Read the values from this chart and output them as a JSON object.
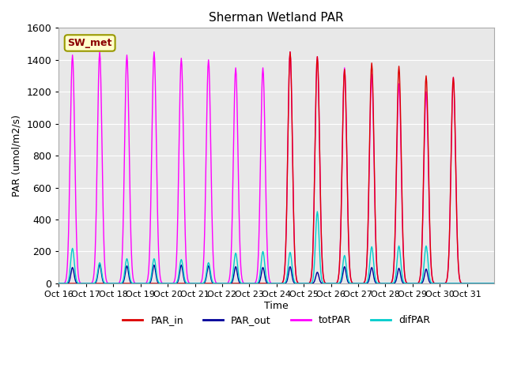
{
  "title": "Sherman Wetland PAR",
  "ylabel": "PAR (umol/m2/s)",
  "xlabel": "Time",
  "annotation": "SW_met",
  "ylim": [
    0,
    1600
  ],
  "background_color": "#e8e8e8",
  "legend_entries": [
    "PAR_in",
    "PAR_out",
    "totPAR",
    "difPAR"
  ],
  "legend_colors": [
    "#dd0000",
    "#000099",
    "#ff00ff",
    "#00cccc"
  ],
  "day_labels": [
    "Oct 16",
    "Oct 17",
    "Oct 18",
    "Oct 19",
    "Oct 20",
    "Oct 21",
    "Oct 22",
    "Oct 23",
    "Oct 24",
    "Oct 25",
    "Oct 26",
    "Oct 27",
    "Oct 28",
    "Oct 29",
    "Oct 30",
    "Oct 31"
  ],
  "totPAR_peaks": [
    1430,
    1450,
    1430,
    1450,
    1410,
    1400,
    1350,
    1350,
    1450,
    1420,
    1350,
    1310,
    1250,
    1200,
    1290,
    0
  ],
  "PAR_in_peaks": [
    0,
    0,
    0,
    0,
    0,
    0,
    0,
    0,
    1450,
    1420,
    1340,
    1380,
    1360,
    1300,
    1290,
    0
  ],
  "PAR_out_peaks": [
    100,
    120,
    110,
    115,
    115,
    110,
    105,
    100,
    105,
    70,
    105,
    100,
    95,
    90,
    0,
    0
  ],
  "difPAR_peaks": [
    220,
    130,
    155,
    155,
    150,
    130,
    190,
    200,
    195,
    450,
    175,
    230,
    235,
    235,
    0,
    0
  ]
}
